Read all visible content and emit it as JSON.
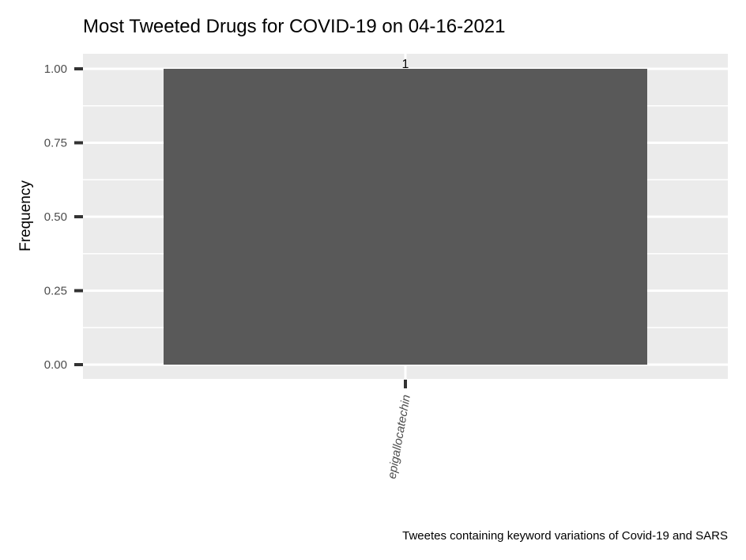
{
  "chart_data": {
    "type": "bar",
    "title": "Most Tweeted Drugs for COVID-19 on 04-16-2021",
    "xlabel": "",
    "ylabel": "Frequency",
    "caption": "Tweetes containing keyword variations of Covid-19 and SARS",
    "categories": [
      "epigallocatechin"
    ],
    "values": [
      1
    ],
    "data_labels": [
      "1"
    ],
    "ylim": [
      0,
      1
    ],
    "yticks": [
      0,
      0.25,
      0.5,
      0.75,
      1
    ],
    "ytick_labels": [
      "0.00",
      "0.25",
      "0.50",
      "0.75",
      "1.00"
    ],
    "grid": true,
    "legend": "none",
    "colors": {
      "bar": "#595959",
      "panel_background": "#ebebeb",
      "grid": "#ffffff",
      "tick": "#333333"
    }
  }
}
